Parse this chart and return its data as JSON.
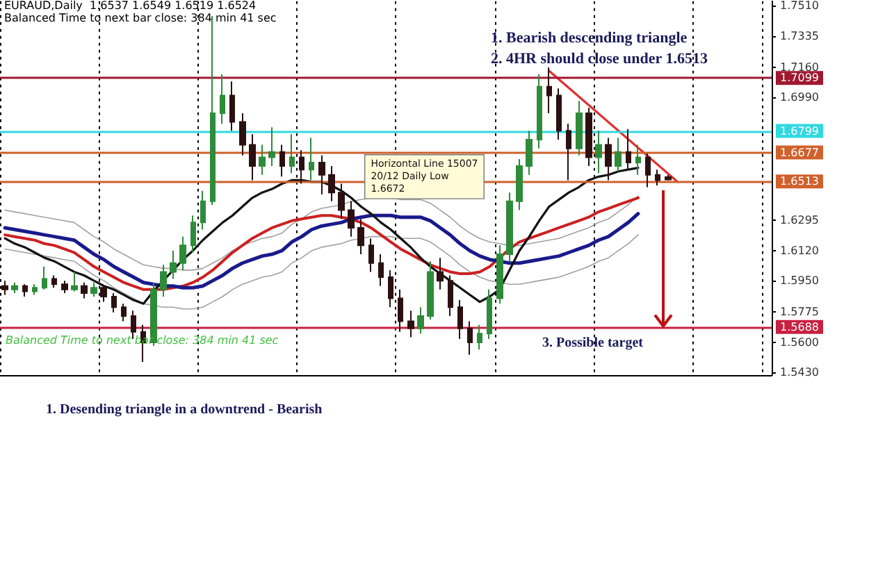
{
  "chart_data": {
    "type": "candlestick",
    "title": "EURAUD,Daily  1.6537 1.6549 1.6519 1.6524",
    "subtitle": "Balanced Time to next bar close: 384 min 41 sec",
    "annotations": [
      "1. Bearish descending triangle",
      "2. 4HR should close under 1.6513",
      "3. Possible target",
      "1. Desending triangle in a downtrend - Bearish",
      "Horizontal Line 15007\n20/12 Daily Low\n1.6672",
      "Balanced Time to next bar close: 384 min 41 sec"
    ],
    "categories": [
      null,
      null,
      null,
      null,
      null,
      null,
      null,
      null,
      null,
      null,
      null,
      null,
      null,
      null,
      null,
      null,
      null,
      null,
      null,
      null,
      null,
      null,
      null,
      null,
      null,
      null,
      null,
      null,
      null,
      null,
      null,
      null,
      null,
      null,
      null,
      null,
      null,
      null,
      null,
      null,
      null,
      null,
      null,
      null,
      null,
      null,
      null,
      null,
      null,
      null,
      null,
      null,
      null,
      null,
      null,
      null,
      null,
      null,
      null,
      null,
      null,
      null,
      null,
      null,
      null,
      null,
      null,
      null,
      null,
      null,
      null,
      null,
      null,
      null,
      null,
      null,
      null,
      null
    ],
    "ylim": [
      1.5415,
      1.7535
    ],
    "yticks": [
      {
        "value": 1.751,
        "label": "1.7510"
      },
      {
        "value": 1.7335,
        "label": "1.7335"
      },
      {
        "value": 1.716,
        "label": "1.7160"
      },
      {
        "value": 1.699,
        "label": "1.6990"
      },
      {
        "value": 1.6295,
        "label": "1.6295"
      },
      {
        "value": 1.612,
        "label": "1.6120"
      },
      {
        "value": 1.595,
        "label": "1.5950"
      },
      {
        "value": 1.5775,
        "label": "1.5775"
      },
      {
        "value": 1.56,
        "label": "1.5600"
      },
      {
        "value": 1.543,
        "label": "1.5430"
      }
    ],
    "tick_labels": "y",
    "grid": "x",
    "ref_lines": [
      {
        "axis": "y",
        "value": 1.7099,
        "label": "1.7099",
        "color": "#a01830"
      },
      {
        "axis": "y",
        "value": 1.6799,
        "label": "1.6799",
        "color": "#30d8e0"
      },
      {
        "axis": "y",
        "value": 1.6677,
        "label": "1.6677",
        "color": "#d0602c"
      },
      {
        "axis": "y",
        "value": 1.6513,
        "label": "1.6513",
        "color": "#d0602c"
      },
      {
        "axis": "y",
        "value": 1.5688,
        "label": "1.5688",
        "color": "#c82040"
      }
    ],
    "series": [
      {
        "type": "line",
        "color": "#a0a0a0",
        "values": [
          1.635,
          1.634,
          1.633,
          1.632,
          1.631,
          1.63,
          1.629,
          1.628,
          1.624,
          1.62,
          1.617,
          1.613,
          1.61,
          1.607,
          1.604,
          1.603,
          1.602,
          1.602,
          1.601,
          1.601,
          1.602,
          1.605,
          1.608,
          1.612,
          1.615,
          1.617,
          1.619,
          1.62,
          1.622,
          1.627,
          1.63,
          1.634,
          1.636,
          1.637,
          1.638,
          1.64,
          1.641,
          1.642,
          1.642,
          1.642,
          1.641,
          1.641,
          1.641,
          1.639,
          1.635,
          1.631,
          1.626,
          1.622,
          1.619,
          1.617,
          1.616,
          1.615,
          1.615,
          1.616,
          1.617,
          1.618,
          1.619,
          1.621,
          1.623,
          1.625,
          1.628,
          1.63,
          1.634,
          1.638,
          1.643,
          null,
          null,
          null,
          null,
          null,
          null,
          null,
          null,
          null,
          null,
          null,
          null,
          null
        ]
      },
      {
        "type": "line",
        "color": "#a0a0a0",
        "values": [
          1.613,
          1.612,
          1.611,
          1.61,
          1.609,
          1.608,
          1.607,
          1.606,
          1.602,
          1.598,
          1.595,
          1.591,
          1.588,
          1.585,
          1.582,
          1.581,
          1.58,
          1.58,
          1.579,
          1.579,
          1.58,
          1.583,
          1.586,
          1.59,
          1.593,
          1.595,
          1.597,
          1.598,
          1.6,
          1.605,
          1.608,
          1.612,
          1.614,
          1.615,
          1.616,
          1.618,
          1.619,
          1.62,
          1.62,
          1.62,
          1.619,
          1.619,
          1.619,
          1.617,
          1.613,
          1.609,
          1.604,
          1.6,
          1.597,
          1.595,
          1.594,
          1.593,
          1.593,
          1.594,
          1.595,
          1.596,
          1.597,
          1.599,
          1.601,
          1.603,
          1.606,
          1.608,
          1.612,
          1.616,
          1.621,
          null,
          null,
          null,
          null,
          null,
          null,
          null,
          null,
          null,
          null,
          null,
          null,
          null
        ]
      },
      {
        "type": "line",
        "color": "#cc2020",
        "values": [
          1.621,
          1.62,
          1.619,
          1.618,
          1.616,
          1.615,
          1.613,
          1.611,
          1.607,
          1.603,
          1.6,
          1.597,
          1.594,
          1.592,
          1.59,
          1.59,
          1.59,
          1.591,
          1.592,
          1.594,
          1.597,
          1.601,
          1.606,
          1.611,
          1.615,
          1.619,
          1.622,
          1.625,
          1.627,
          1.629,
          1.63,
          1.631,
          1.632,
          1.632,
          1.631,
          1.63,
          1.628,
          1.625,
          1.621,
          1.617,
          1.613,
          1.61,
          1.607,
          1.604,
          1.602,
          1.6,
          1.599,
          1.599,
          1.6,
          1.603,
          1.608,
          1.613,
          1.617,
          1.619,
          1.621,
          1.623,
          1.625,
          1.627,
          1.629,
          1.631,
          1.634,
          1.636,
          1.638,
          1.64,
          1.642,
          null,
          null,
          null,
          null,
          null,
          null,
          null,
          null,
          null,
          null,
          null,
          null,
          null
        ]
      },
      {
        "type": "line",
        "color": "#1a1a8c",
        "values": [
          1.625,
          1.624,
          1.623,
          1.622,
          1.621,
          1.62,
          1.619,
          1.618,
          1.614,
          1.61,
          1.607,
          1.603,
          1.6,
          1.597,
          1.594,
          1.593,
          1.592,
          1.592,
          1.591,
          1.591,
          1.592,
          1.595,
          1.598,
          1.602,
          1.605,
          1.607,
          1.609,
          1.61,
          1.612,
          1.617,
          1.62,
          1.624,
          1.626,
          1.627,
          1.628,
          1.63,
          1.631,
          1.632,
          1.632,
          1.632,
          1.631,
          1.631,
          1.631,
          1.629,
          1.625,
          1.621,
          1.616,
          1.612,
          1.609,
          1.607,
          1.606,
          1.605,
          1.605,
          1.606,
          1.607,
          1.608,
          1.609,
          1.611,
          1.613,
          1.615,
          1.618,
          1.62,
          1.624,
          1.628,
          1.633,
          null,
          null,
          null,
          null,
          null,
          null,
          null,
          null,
          null,
          null,
          null,
          null,
          null
        ]
      },
      {
        "type": "line",
        "color": "#111111",
        "values": [
          1.619,
          1.616,
          1.614,
          1.611,
          1.608,
          1.606,
          1.603,
          1.6,
          1.598,
          1.595,
          1.592,
          1.59,
          1.587,
          1.584,
          1.582,
          1.589,
          1.595,
          1.601,
          1.607,
          1.612,
          1.618,
          1.623,
          1.628,
          1.632,
          1.637,
          1.642,
          1.645,
          1.647,
          1.65,
          1.652,
          1.652,
          1.651,
          1.651,
          1.649,
          1.646,
          1.642,
          1.637,
          1.633,
          1.628,
          1.624,
          1.619,
          1.614,
          1.608,
          1.603,
          1.599,
          1.595,
          1.591,
          1.587,
          1.583,
          1.586,
          1.59,
          1.601,
          1.612,
          1.62,
          1.629,
          1.637,
          1.641,
          1.645,
          1.648,
          1.652,
          1.654,
          1.655,
          1.657,
          1.658,
          1.659,
          null,
          null,
          null,
          null,
          null,
          null,
          null,
          null,
          null,
          null,
          null,
          null,
          null
        ]
      },
      {
        "type": "line",
        "color": "#e03030",
        "values": [
          null,
          null,
          null,
          null,
          null,
          null,
          null,
          null,
          null,
          null,
          null,
          null,
          null,
          null,
          null,
          null,
          null,
          null,
          null,
          null,
          null,
          null,
          null,
          null,
          null,
          null,
          null,
          null,
          null,
          null,
          null,
          null,
          null,
          null,
          null,
          null,
          null,
          null,
          null,
          null,
          null,
          null,
          null,
          null,
          null,
          null,
          null,
          null,
          null,
          null,
          null,
          null,
          null,
          null,
          null,
          1.714,
          null,
          null,
          null,
          null,
          null,
          null,
          null,
          null,
          null,
          null,
          null,
          null,
          1.651,
          null,
          null,
          null,
          null,
          null,
          null,
          null,
          null,
          null
        ]
      },
      {
        "colors": [
          "#2a1010",
          "#2e8b3a",
          "#2a1010",
          "#2e8b3a",
          "#2e8b3a",
          "#2a1010",
          "#2a1010",
          "#2e8b3a",
          "#2a1010",
          "#2e8b3a",
          "#2a1010",
          "#2a1010",
          "#2a1010",
          "#2a1010",
          "#2a1010",
          "#2e8b3a",
          "#2e8b3a",
          "#2e8b3a",
          "#2e8b3a",
          "#2e8b3a",
          "#2e8b3a",
          "#2e8b3a",
          "#2e8b3a",
          "#2a1010",
          "#2a1010",
          "#2a1010",
          "#2e8b3a",
          "#2e8b3a",
          "#2a1010",
          "#2e8b3a",
          "#2a1010",
          "#2e8b3a",
          "#2a1010",
          "#2a1010",
          "#2a1010",
          "#2a1010",
          "#2a1010",
          "#2a1010",
          "#2a1010",
          "#2a1010",
          "#2a1010",
          "#2a1010",
          "#2e8b3a",
          "#2e8b3a",
          "#2a1010",
          "#2a1010",
          "#2a1010",
          "#2a1010",
          "#2e8b3a",
          "#2e8b3a",
          "#2e8b3a",
          "#2e8b3a",
          "#2e8b3a",
          "#2e8b3a",
          "#2e8b3a",
          "#2a1010",
          "#2a1010",
          "#2a1010",
          "#2e8b3a",
          "#2a1010",
          "#2e8b3a",
          "#2a1010",
          "#2e8b3a",
          "#2a1010",
          "#2e8b3a",
          "#2a1010",
          "#2a1010",
          "#2a1010",
          null,
          null,
          null,
          null,
          null,
          null,
          null,
          null,
          null,
          null
        ],
        "ohlc": [
          [
            1.592,
            1.595,
            1.587,
            1.59
          ],
          [
            1.59,
            1.594,
            1.588,
            1.592
          ],
          [
            1.592,
            1.593,
            1.586,
            1.589
          ],
          [
            1.589,
            1.593,
            1.587,
            1.591
          ],
          [
            1.591,
            1.603,
            1.59,
            1.596
          ],
          [
            1.596,
            1.598,
            1.591,
            1.593
          ],
          [
            1.593,
            1.595,
            1.588,
            1.59
          ],
          [
            1.59,
            1.6,
            1.589,
            1.592
          ],
          [
            1.592,
            1.594,
            1.585,
            1.588
          ],
          [
            1.588,
            1.594,
            1.586,
            1.591
          ],
          [
            1.591,
            1.592,
            1.583,
            1.586
          ],
          [
            1.586,
            1.588,
            1.577,
            1.58
          ],
          [
            1.58,
            1.582,
            1.572,
            1.575
          ],
          [
            1.575,
            1.578,
            1.562,
            1.566
          ],
          [
            1.566,
            1.57,
            1.549,
            1.56
          ],
          [
            1.56,
            1.594,
            1.558,
            1.59
          ],
          [
            1.59,
            1.604,
            1.586,
            1.6
          ],
          [
            1.6,
            1.612,
            1.596,
            1.605
          ],
          [
            1.605,
            1.62,
            1.601,
            1.615
          ],
          [
            1.615,
            1.632,
            1.611,
            1.628
          ],
          [
            1.628,
            1.646,
            1.624,
            1.64
          ],
          [
            1.64,
            1.745,
            1.638,
            1.69
          ],
          [
            1.69,
            1.712,
            1.684,
            1.7
          ],
          [
            1.7,
            1.708,
            1.68,
            1.685
          ],
          [
            1.685,
            1.69,
            1.666,
            1.672
          ],
          [
            1.672,
            1.678,
            1.652,
            1.66
          ],
          [
            1.66,
            1.672,
            1.655,
            1.665
          ],
          [
            1.665,
            1.682,
            1.66,
            1.668
          ],
          [
            1.668,
            1.672,
            1.654,
            1.66
          ],
          [
            1.66,
            1.678,
            1.656,
            1.665
          ],
          [
            1.665,
            1.669,
            1.65,
            1.658
          ],
          [
            1.658,
            1.676,
            1.652,
            1.662
          ],
          [
            1.662,
            1.666,
            1.644,
            1.655
          ],
          [
            1.655,
            1.66,
            1.64,
            1.645
          ],
          [
            1.645,
            1.65,
            1.63,
            1.635
          ],
          [
            1.635,
            1.64,
            1.62,
            1.625
          ],
          [
            1.625,
            1.63,
            1.61,
            1.615
          ],
          [
            1.615,
            1.619,
            1.6,
            1.605
          ],
          [
            1.605,
            1.61,
            1.592,
            1.597
          ],
          [
            1.597,
            1.601,
            1.58,
            1.585
          ],
          [
            1.585,
            1.59,
            1.566,
            1.572
          ],
          [
            1.572,
            1.578,
            1.563,
            1.568
          ],
          [
            1.568,
            1.58,
            1.565,
            1.575
          ],
          [
            1.575,
            1.606,
            1.573,
            1.6
          ],
          [
            1.6,
            1.608,
            1.59,
            1.595
          ],
          [
            1.595,
            1.598,
            1.575,
            1.58
          ],
          [
            1.58,
            1.584,
            1.562,
            1.568
          ],
          [
            1.568,
            1.572,
            1.553,
            1.56
          ],
          [
            1.56,
            1.57,
            1.556,
            1.565
          ],
          [
            1.565,
            1.59,
            1.562,
            1.585
          ],
          [
            1.585,
            1.615,
            1.582,
            1.61
          ],
          [
            1.61,
            1.645,
            1.606,
            1.64
          ],
          [
            1.64,
            1.664,
            1.635,
            1.66
          ],
          [
            1.66,
            1.68,
            1.655,
            1.675
          ],
          [
            1.675,
            1.712,
            1.67,
            1.705
          ],
          [
            1.705,
            1.716,
            1.69,
            1.7
          ],
          [
            1.7,
            1.704,
            1.675,
            1.68
          ],
          [
            1.68,
            1.684,
            1.652,
            1.67
          ],
          [
            1.67,
            1.697,
            1.666,
            1.69
          ],
          [
            1.69,
            1.693,
            1.66,
            1.665
          ],
          [
            1.665,
            1.68,
            1.656,
            1.672
          ],
          [
            1.672,
            1.676,
            1.652,
            1.66
          ],
          [
            1.66,
            1.676,
            1.657,
            1.668
          ],
          [
            1.668,
            1.681,
            1.658,
            1.662
          ],
          [
            1.662,
            1.672,
            1.655,
            1.665
          ],
          [
            1.665,
            1.667,
            1.648,
            1.655
          ],
          [
            1.655,
            1.658,
            1.649,
            1.652
          ],
          [
            1.6537,
            1.6549,
            1.6519,
            1.6524
          ],
          null,
          null,
          null,
          null,
          null,
          null,
          null,
          null,
          null,
          null
        ]
      }
    ]
  }
}
